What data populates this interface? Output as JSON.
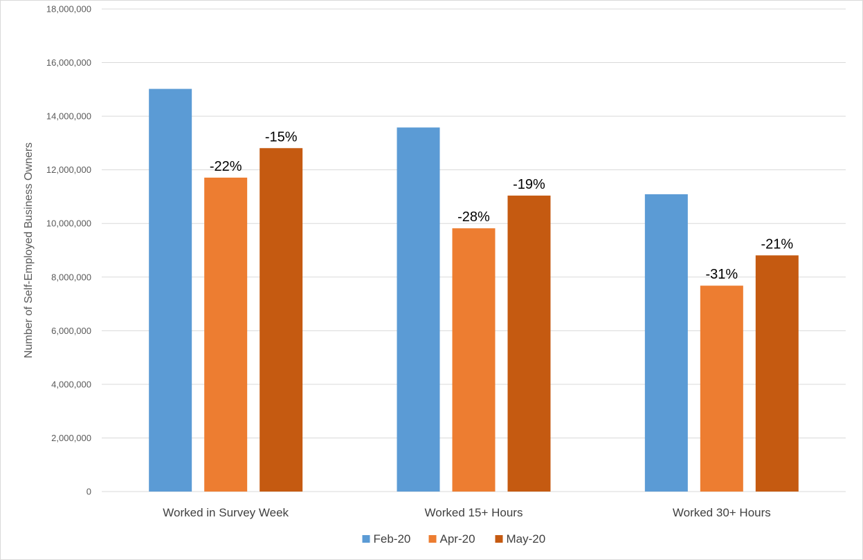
{
  "chart_data": {
    "type": "bar",
    "title": "",
    "xlabel": "",
    "ylabel": "Number of Self-Employed Business Owners",
    "ylim": [
      0,
      18000000
    ],
    "yticks": [
      0,
      2000000,
      4000000,
      6000000,
      8000000,
      10000000,
      12000000,
      14000000,
      16000000,
      18000000
    ],
    "ytick_labels": [
      "0",
      "2,000,000",
      "4,000,000",
      "6,000,000",
      "8,000,000",
      "10,000,000",
      "12,000,000",
      "14,000,000",
      "16,000,000",
      "18,000,000"
    ],
    "grid": true,
    "legend_position": "bottom",
    "categories": [
      "Worked in Survey Week",
      "Worked 15+ Hours",
      "Worked 30+ Hours"
    ],
    "series": [
      {
        "name": "Feb-20",
        "color": "#5B9BD5",
        "values": [
          15020000,
          13580000,
          11090000
        ],
        "labels": [
          "",
          "",
          ""
        ]
      },
      {
        "name": "Apr-20",
        "color": "#ED7D31",
        "values": [
          11710000,
          9820000,
          7680000
        ],
        "labels": [
          "-22%",
          "-28%",
          "-31%"
        ]
      },
      {
        "name": "May-20",
        "color": "#C55A11",
        "values": [
          12810000,
          11040000,
          8810000
        ],
        "labels": [
          "-15%",
          "-19%",
          "-21%"
        ]
      }
    ]
  }
}
